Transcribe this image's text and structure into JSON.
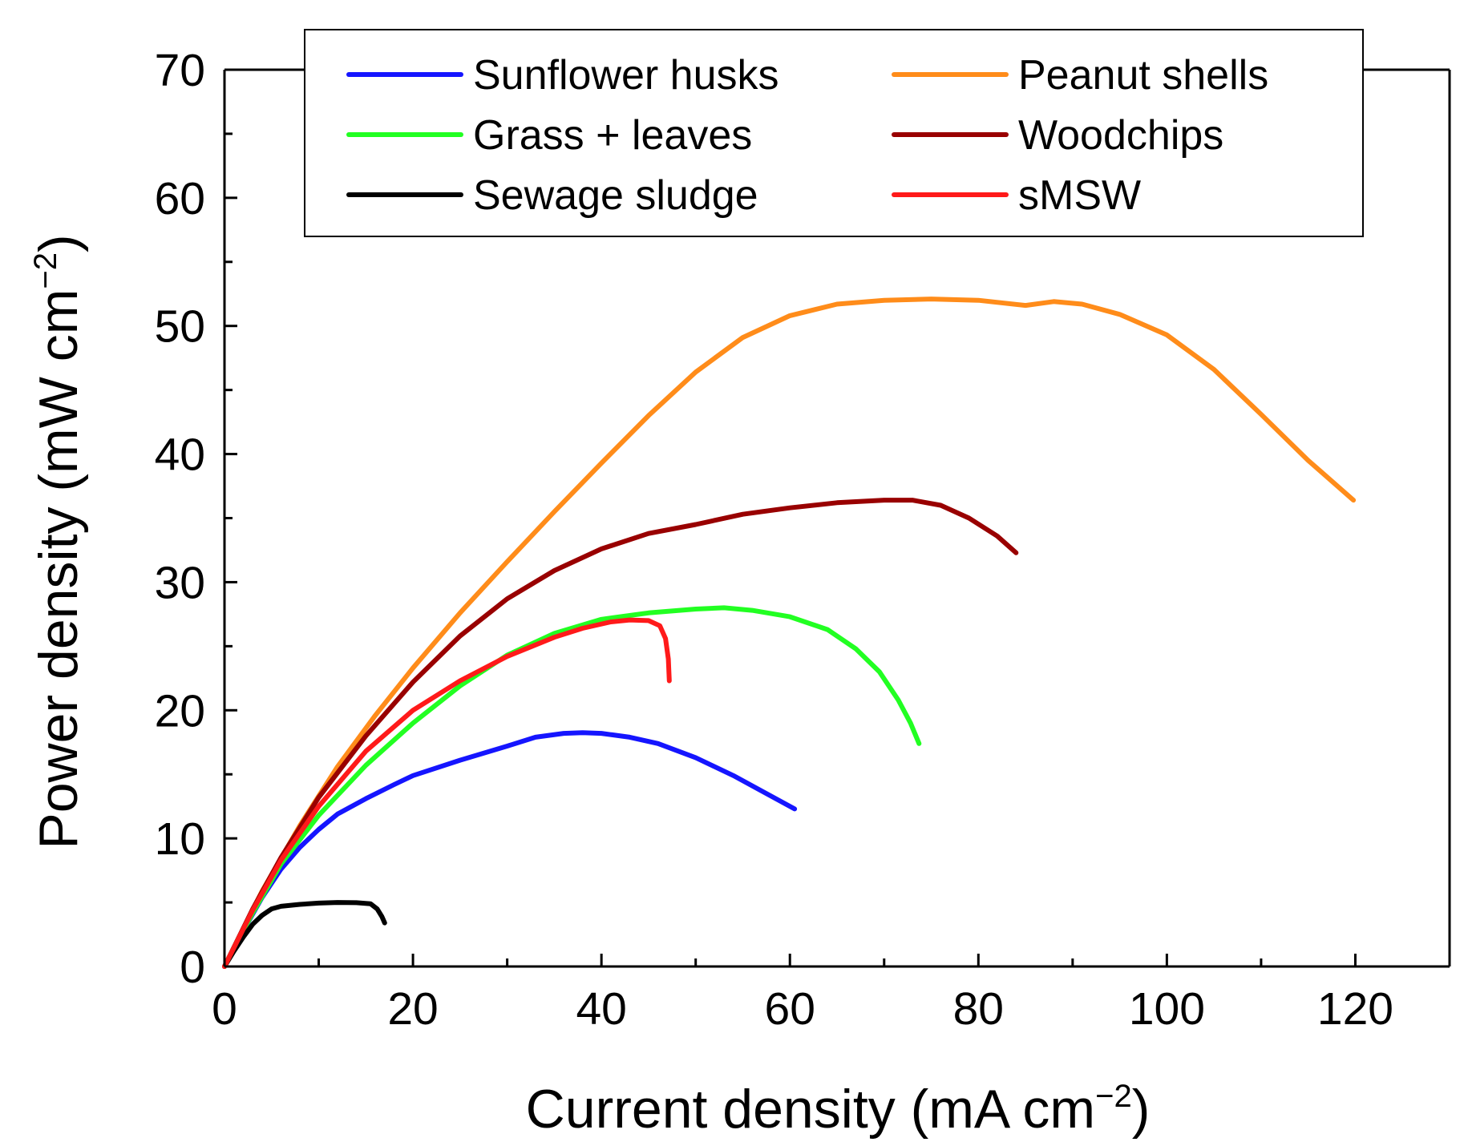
{
  "chart_data": {
    "type": "line",
    "title": "",
    "xlabel": "Current density (mA cm",
    "xlabel_sup": "−2",
    "xlabel_close": ")",
    "ylabel": "Power density (mW cm",
    "ylabel_sup": "−2",
    "ylabel_close": ")",
    "xlim": [
      0,
      130
    ],
    "ylim": [
      0,
      70
    ],
    "xticks": [
      0,
      20,
      40,
      60,
      80,
      100,
      120
    ],
    "xticks_minor": [
      10,
      30,
      50,
      70,
      90,
      110,
      130
    ],
    "yticks": [
      0,
      10,
      20,
      30,
      40,
      50,
      60,
      70
    ],
    "yticks_minor": [
      5,
      15,
      25,
      35,
      45,
      55,
      65
    ],
    "grid": false,
    "legend_position": "top",
    "series": [
      {
        "name": "Sunflower husks",
        "color": "#1515ff",
        "points": [
          [
            0,
            0
          ],
          [
            2,
            2.8
          ],
          [
            4,
            5.4
          ],
          [
            6,
            7.6
          ],
          [
            8,
            9.3
          ],
          [
            10,
            10.7
          ],
          [
            12,
            11.9
          ],
          [
            15,
            13.1
          ],
          [
            18,
            14.2
          ],
          [
            20,
            14.9
          ],
          [
            25,
            16.1
          ],
          [
            30,
            17.2
          ],
          [
            33,
            17.9
          ],
          [
            36,
            18.2
          ],
          [
            38,
            18.25
          ],
          [
            40,
            18.2
          ],
          [
            43,
            17.9
          ],
          [
            46,
            17.4
          ],
          [
            50,
            16.3
          ],
          [
            54,
            14.9
          ],
          [
            57,
            13.7
          ],
          [
            60.5,
            12.3
          ]
        ]
      },
      {
        "name": "Grass + leaves",
        "color": "#22ff22",
        "points": [
          [
            0,
            0
          ],
          [
            3,
            4.2
          ],
          [
            6,
            8
          ],
          [
            10,
            11.8
          ],
          [
            15,
            15.7
          ],
          [
            20,
            19
          ],
          [
            25,
            21.9
          ],
          [
            30,
            24.3
          ],
          [
            35,
            26
          ],
          [
            40,
            27.1
          ],
          [
            45,
            27.6
          ],
          [
            50,
            27.9
          ],
          [
            53,
            28
          ],
          [
            56,
            27.8
          ],
          [
            60,
            27.3
          ],
          [
            64,
            26.3
          ],
          [
            67,
            24.8
          ],
          [
            69.5,
            23
          ],
          [
            71.5,
            20.8
          ],
          [
            72.8,
            19
          ],
          [
            73.7,
            17.4
          ]
        ]
      },
      {
        "name": "Sewage sludge",
        "color": "#000000",
        "points": [
          [
            0,
            0
          ],
          [
            1,
            1.2
          ],
          [
            2,
            2.3
          ],
          [
            3,
            3.3
          ],
          [
            4,
            4
          ],
          [
            5,
            4.5
          ],
          [
            6,
            4.7
          ],
          [
            8,
            4.85
          ],
          [
            10,
            4.95
          ],
          [
            12,
            5
          ],
          [
            14,
            4.98
          ],
          [
            15.5,
            4.9
          ],
          [
            16.2,
            4.5
          ],
          [
            16.7,
            3.9
          ],
          [
            17,
            3.4
          ]
        ]
      },
      {
        "name": "Peanut shells",
        "color": "#ff8c1a",
        "points": [
          [
            0,
            0
          ],
          [
            4,
            5.9
          ],
          [
            8,
            11
          ],
          [
            12,
            15.6
          ],
          [
            16,
            19.6
          ],
          [
            20,
            23.3
          ],
          [
            25,
            27.6
          ],
          [
            30,
            31.6
          ],
          [
            35,
            35.5
          ],
          [
            40,
            39.3
          ],
          [
            45,
            43
          ],
          [
            50,
            46.4
          ],
          [
            55,
            49.1
          ],
          [
            60,
            50.8
          ],
          [
            65,
            51.7
          ],
          [
            70,
            52
          ],
          [
            75,
            52.1
          ],
          [
            80,
            52
          ],
          [
            85,
            51.6
          ],
          [
            88,
            51.9
          ],
          [
            91,
            51.7
          ],
          [
            95,
            50.9
          ],
          [
            100,
            49.3
          ],
          [
            105,
            46.6
          ],
          [
            110,
            43.1
          ],
          [
            115,
            39.5
          ],
          [
            119.8,
            36.4
          ]
        ]
      },
      {
        "name": "Woodchips",
        "color": "#990000",
        "points": [
          [
            0,
            0
          ],
          [
            3,
            4.5
          ],
          [
            6,
            8.5
          ],
          [
            10,
            13.2
          ],
          [
            15,
            18
          ],
          [
            20,
            22.2
          ],
          [
            25,
            25.8
          ],
          [
            30,
            28.7
          ],
          [
            35,
            30.9
          ],
          [
            40,
            32.6
          ],
          [
            45,
            33.8
          ],
          [
            50,
            34.5
          ],
          [
            55,
            35.3
          ],
          [
            60,
            35.8
          ],
          [
            65,
            36.2
          ],
          [
            70,
            36.4
          ],
          [
            73,
            36.4
          ],
          [
            76,
            36
          ],
          [
            79,
            35
          ],
          [
            82,
            33.6
          ],
          [
            84,
            32.3
          ]
        ]
      },
      {
        "name": "sMSW",
        "color": "#ff1a1a",
        "points": [
          [
            0,
            0
          ],
          [
            3,
            4.4
          ],
          [
            6,
            8.3
          ],
          [
            10,
            12.5
          ],
          [
            15,
            16.8
          ],
          [
            20,
            20
          ],
          [
            25,
            22.3
          ],
          [
            30,
            24.2
          ],
          [
            35,
            25.7
          ],
          [
            38,
            26.4
          ],
          [
            41,
            26.9
          ],
          [
            43,
            27.05
          ],
          [
            45,
            27
          ],
          [
            46.2,
            26.6
          ],
          [
            46.8,
            25.6
          ],
          [
            47.1,
            24
          ],
          [
            47.2,
            22.3
          ]
        ]
      }
    ]
  }
}
